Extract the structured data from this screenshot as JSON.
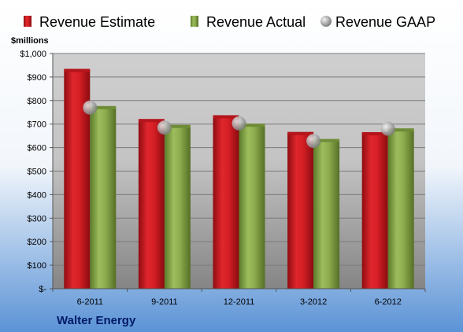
{
  "chart_data": {
    "type": "bar",
    "categories": [
      "6-2011",
      "9-2011",
      "12-2011",
      "3-2012",
      "6-2012"
    ],
    "series": [
      {
        "name": "Revenue Estimate",
        "values": [
          928,
          715,
          731,
          660,
          659
        ],
        "color": "#cc1b22"
      },
      {
        "name": "Revenue Actual",
        "values": [
          770,
          690,
          695,
          630,
          675
        ],
        "color": "#7f9f3f"
      },
      {
        "name": "Revenue GAAP",
        "values": [
          770,
          685,
          703,
          628,
          680
        ],
        "color": "#a0a0a0",
        "marker": "circle"
      }
    ],
    "ylabel": "$millions",
    "ylim": [
      0,
      1000
    ],
    "yticks": [
      {
        "value": 0,
        "label": "$-"
      },
      {
        "value": 100,
        "label": "$100"
      },
      {
        "value": 200,
        "label": "$200"
      },
      {
        "value": 300,
        "label": "$300"
      },
      {
        "value": 400,
        "label": "$400"
      },
      {
        "value": 500,
        "label": "$500"
      },
      {
        "value": 600,
        "label": "$600"
      },
      {
        "value": 700,
        "label": "$700"
      },
      {
        "value": 800,
        "label": "$800"
      },
      {
        "value": 900,
        "label": "$900"
      },
      {
        "value": 1000,
        "label": "$1,000"
      }
    ],
    "grid": true,
    "legend": "top",
    "footer": "Walter Energy"
  }
}
